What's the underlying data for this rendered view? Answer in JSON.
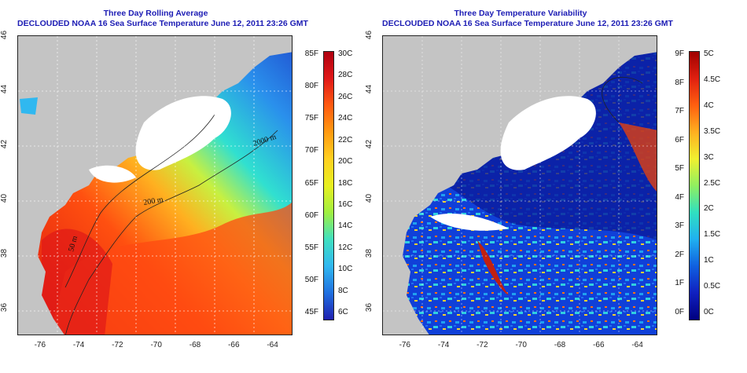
{
  "left_panel": {
    "title_line1": "Three Day Rolling Average",
    "title_line2": "DECLOUDED NOAA 16 Sea Surface Temperature June 12, 2011 23:26 GMT",
    "contour_labels": [
      "2000 m",
      "200 m",
      "50 m"
    ],
    "colorbar": {
      "fahrenheit_labels": [
        "85F",
        "80F",
        "75F",
        "70F",
        "65F",
        "60F",
        "55F",
        "50F",
        "45F"
      ],
      "celsius_labels": [
        "30C",
        "28C",
        "26C",
        "24C",
        "22C",
        "20C",
        "18C",
        "16C",
        "14C",
        "12C",
        "10C",
        "8C",
        "6C"
      ],
      "colors": [
        "#b00010",
        "#e01818",
        "#ff5a10",
        "#ff9a10",
        "#ffd020",
        "#e8f020",
        "#a0f040",
        "#40e0c0",
        "#30b8f0",
        "#2070e0",
        "#2020b0"
      ]
    }
  },
  "right_panel": {
    "title_line1": "Three Day Temperature Variability",
    "title_line2": "DECLOUDED NOAA 16 Sea Surface Temperature June 12, 2011 23:26 GMT",
    "colorbar": {
      "fahrenheit_labels": [
        "9F",
        "8F",
        "7F",
        "6F",
        "5F",
        "4F",
        "3F",
        "2F",
        "1F",
        "0F"
      ],
      "celsius_labels": [
        "5C",
        "4.5C",
        "4C",
        "3.5C",
        "3C",
        "2.5C",
        "2C",
        "1.5C",
        "1C",
        "0.5C",
        "0C"
      ],
      "colors": [
        "#a00000",
        "#e02010",
        "#ff6010",
        "#ffb020",
        "#f0f030",
        "#90f060",
        "#30e0c0",
        "#20b0f0",
        "#1060e0",
        "#1020c0",
        "#000080"
      ]
    }
  },
  "axes": {
    "x_ticks": [
      "-76",
      "-74",
      "-72",
      "-70",
      "-68",
      "-66",
      "-64"
    ],
    "y_ticks": [
      "46",
      "44",
      "42",
      "40",
      "38",
      "36"
    ]
  },
  "colors": {
    "land": "#c4c4c4",
    "cloud": "#ffffff",
    "title_text": "#1c1cb4"
  }
}
